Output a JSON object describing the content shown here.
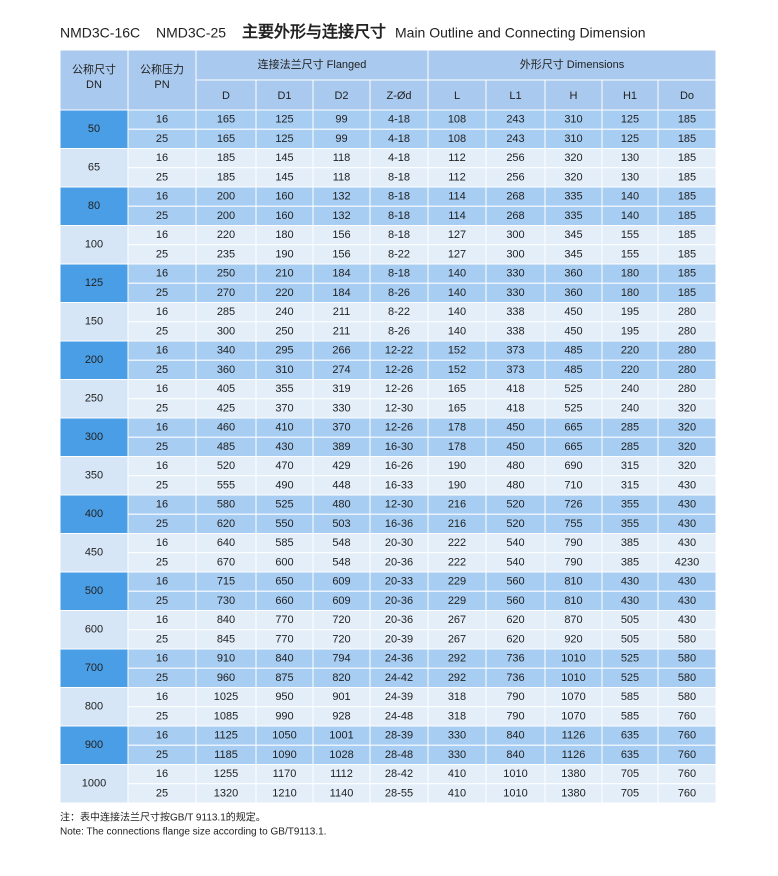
{
  "header": {
    "models": [
      "NMD3C-16C",
      "NMD3C-25"
    ],
    "title_cn": "主要外形与连接尺寸",
    "title_en": "Main Outline and Connecting Dimension"
  },
  "table": {
    "dn_label": [
      "公称尺寸",
      "DN"
    ],
    "pn_label": [
      "公称压力",
      "PN"
    ],
    "flanged_label": "连接法兰尺寸 Flanged",
    "dimensions_label": "外形尺寸 Dimensions",
    "columns": [
      "D",
      "D1",
      "D2",
      "Z-Ød",
      "L",
      "L1",
      "H",
      "H1",
      "Do"
    ],
    "groups": [
      {
        "dn": 50,
        "rows": [
          [
            16,
            165,
            125,
            99,
            "4-18",
            108,
            243,
            310,
            125,
            185
          ],
          [
            25,
            165,
            125,
            99,
            "4-18",
            108,
            243,
            310,
            125,
            185
          ]
        ]
      },
      {
        "dn": 65,
        "rows": [
          [
            16,
            185,
            145,
            118,
            "4-18",
            112,
            256,
            320,
            130,
            185
          ],
          [
            25,
            185,
            145,
            118,
            "8-18",
            112,
            256,
            320,
            130,
            185
          ]
        ]
      },
      {
        "dn": 80,
        "rows": [
          [
            16,
            200,
            160,
            132,
            "8-18",
            114,
            268,
            335,
            140,
            185
          ],
          [
            25,
            200,
            160,
            132,
            "8-18",
            114,
            268,
            335,
            140,
            185
          ]
        ]
      },
      {
        "dn": 100,
        "rows": [
          [
            16,
            220,
            180,
            156,
            "8-18",
            127,
            300,
            345,
            155,
            185
          ],
          [
            25,
            235,
            190,
            156,
            "8-22",
            127,
            300,
            345,
            155,
            185
          ]
        ]
      },
      {
        "dn": 125,
        "rows": [
          [
            16,
            250,
            210,
            184,
            "8-18",
            140,
            330,
            360,
            180,
            185
          ],
          [
            25,
            270,
            220,
            184,
            "8-26",
            140,
            330,
            360,
            180,
            185
          ]
        ]
      },
      {
        "dn": 150,
        "rows": [
          [
            16,
            285,
            240,
            211,
            "8-22",
            140,
            338,
            450,
            195,
            280
          ],
          [
            25,
            300,
            250,
            211,
            "8-26",
            140,
            338,
            450,
            195,
            280
          ]
        ]
      },
      {
        "dn": 200,
        "rows": [
          [
            16,
            340,
            295,
            266,
            "12-22",
            152,
            373,
            485,
            220,
            280
          ],
          [
            25,
            360,
            310,
            274,
            "12-26",
            152,
            373,
            485,
            220,
            280
          ]
        ]
      },
      {
        "dn": 250,
        "rows": [
          [
            16,
            405,
            355,
            319,
            "12-26",
            165,
            418,
            525,
            240,
            280
          ],
          [
            25,
            425,
            370,
            330,
            "12-30",
            165,
            418,
            525,
            240,
            320
          ]
        ]
      },
      {
        "dn": 300,
        "rows": [
          [
            16,
            460,
            410,
            370,
            "12-26",
            178,
            450,
            665,
            285,
            320
          ],
          [
            25,
            485,
            430,
            389,
            "16-30",
            178,
            450,
            665,
            285,
            320
          ]
        ]
      },
      {
        "dn": 350,
        "rows": [
          [
            16,
            520,
            470,
            429,
            "16-26",
            190,
            480,
            690,
            315,
            320
          ],
          [
            25,
            555,
            490,
            448,
            "16-33",
            190,
            480,
            710,
            315,
            430
          ]
        ]
      },
      {
        "dn": 400,
        "rows": [
          [
            16,
            580,
            525,
            480,
            "12-30",
            216,
            520,
            726,
            355,
            430
          ],
          [
            25,
            620,
            550,
            503,
            "16-36",
            216,
            520,
            755,
            355,
            430
          ]
        ]
      },
      {
        "dn": 450,
        "rows": [
          [
            16,
            640,
            585,
            548,
            "20-30",
            222,
            540,
            790,
            385,
            430
          ],
          [
            25,
            670,
            600,
            548,
            "20-36",
            222,
            540,
            790,
            385,
            4230
          ]
        ]
      },
      {
        "dn": 500,
        "rows": [
          [
            16,
            715,
            650,
            609,
            "20-33",
            229,
            560,
            810,
            430,
            430
          ],
          [
            25,
            730,
            660,
            609,
            "20-36",
            229,
            560,
            810,
            430,
            430
          ]
        ]
      },
      {
        "dn": 600,
        "rows": [
          [
            16,
            840,
            770,
            720,
            "20-36",
            267,
            620,
            870,
            505,
            430
          ],
          [
            25,
            845,
            770,
            720,
            "20-39",
            267,
            620,
            920,
            505,
            580
          ]
        ]
      },
      {
        "dn": 700,
        "rows": [
          [
            16,
            910,
            840,
            794,
            "24-36",
            292,
            736,
            1010,
            525,
            580
          ],
          [
            25,
            960,
            875,
            820,
            "24-42",
            292,
            736,
            1010,
            525,
            580
          ]
        ]
      },
      {
        "dn": 800,
        "rows": [
          [
            16,
            1025,
            950,
            901,
            "24-39",
            318,
            790,
            1070,
            585,
            580
          ],
          [
            25,
            1085,
            990,
            928,
            "24-48",
            318,
            790,
            1070,
            585,
            760
          ]
        ]
      },
      {
        "dn": 900,
        "rows": [
          [
            16,
            1125,
            1050,
            1001,
            "28-39",
            330,
            840,
            1126,
            635,
            760
          ],
          [
            25,
            1185,
            1090,
            1028,
            "28-48",
            330,
            840,
            1126,
            635,
            760
          ]
        ]
      },
      {
        "dn": 1000,
        "rows": [
          [
            16,
            1255,
            1170,
            1112,
            "28-42",
            410,
            1010,
            1380,
            705,
            760
          ],
          [
            25,
            1320,
            1210,
            1140,
            "28-55",
            410,
            1010,
            1380,
            705,
            760
          ]
        ]
      }
    ]
  },
  "notes": [
    "注：表中连接法兰尺寸按GB/T 9113.1的规定。",
    "Note: The connections flange size according to GB/T9113.1."
  ]
}
